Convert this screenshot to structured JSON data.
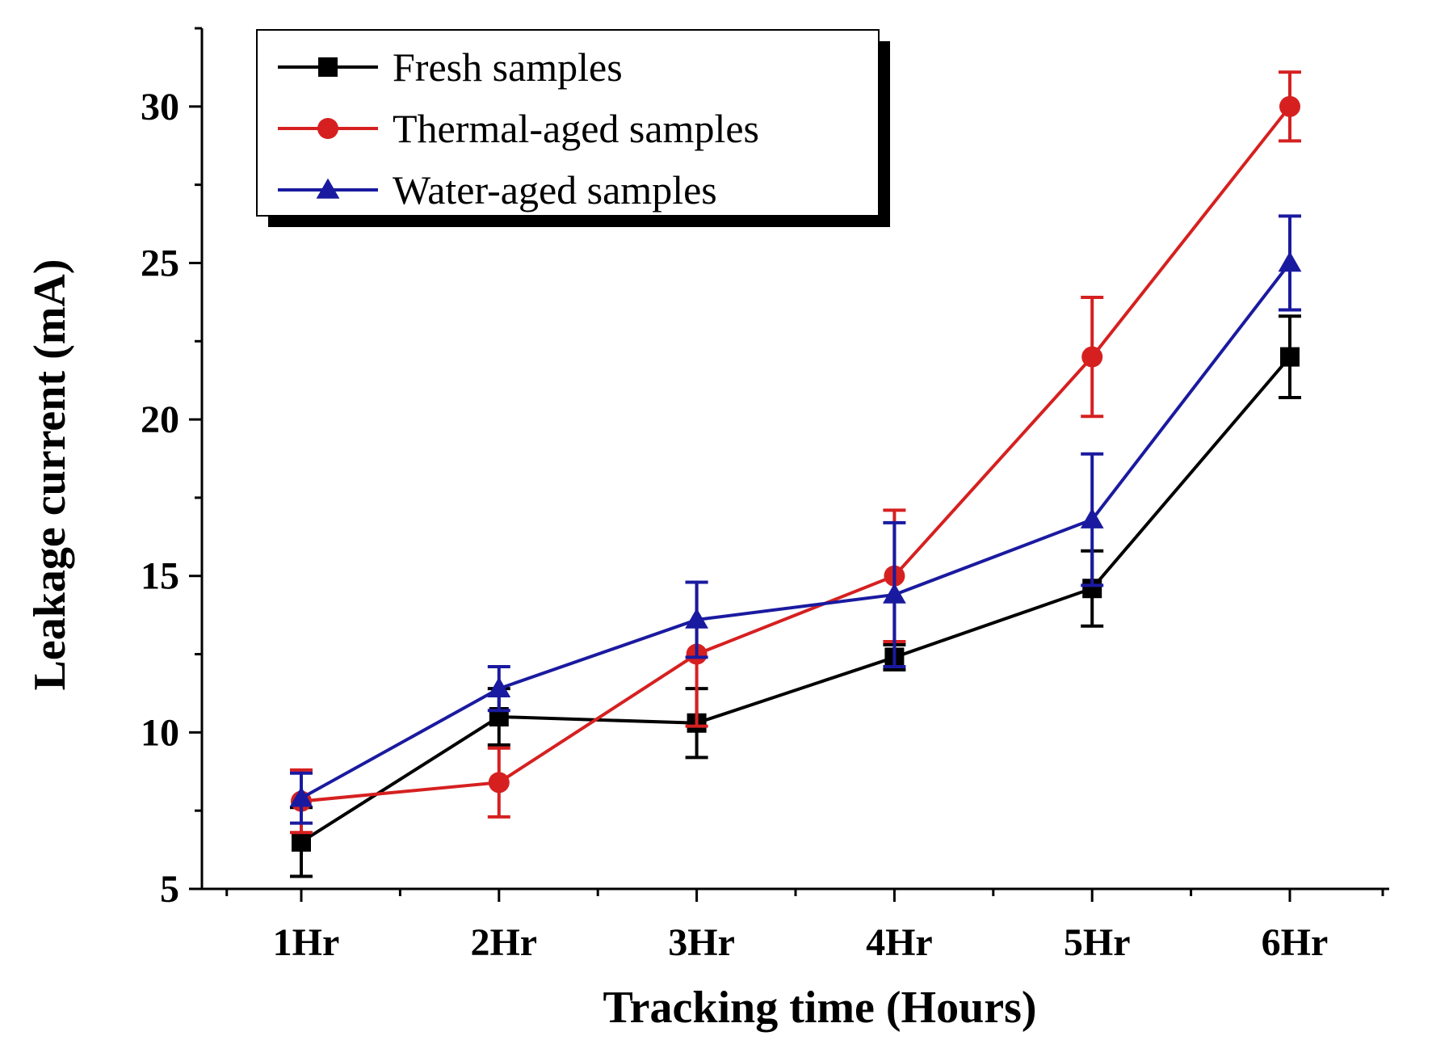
{
  "chart_data": {
    "type": "line",
    "xlabel": "Tracking time (Hours)",
    "ylabel": "Leakage current (mA)",
    "categories": [
      "1Hr",
      "2Hr",
      "3Hr",
      "4Hr",
      "5Hr",
      "6Hr"
    ],
    "ylim": [
      5,
      32.5
    ],
    "yticks": [
      5,
      10,
      15,
      20,
      25,
      30
    ],
    "grid": false,
    "legend_position": "top-left",
    "series": [
      {
        "name": "Fresh samples",
        "color": "#000000",
        "marker": "square",
        "values": [
          6.5,
          10.5,
          10.3,
          12.4,
          14.6,
          22.0
        ],
        "errors": [
          1.1,
          0.9,
          1.1,
          0.4,
          1.2,
          1.3
        ]
      },
      {
        "name": "Thermal-aged samples",
        "color": "#d62020",
        "marker": "circle",
        "values": [
          7.8,
          8.4,
          12.5,
          15.0,
          22.0,
          30.0
        ],
        "errors": [
          1.0,
          1.1,
          2.3,
          2.1,
          1.9,
          1.1
        ]
      },
      {
        "name": "Water-aged samples",
        "color": "#1a1aa0",
        "marker": "triangle",
        "values": [
          7.9,
          11.4,
          13.6,
          14.4,
          16.8,
          25.0
        ],
        "errors": [
          0.8,
          0.7,
          1.2,
          2.3,
          2.1,
          1.5
        ]
      }
    ]
  }
}
